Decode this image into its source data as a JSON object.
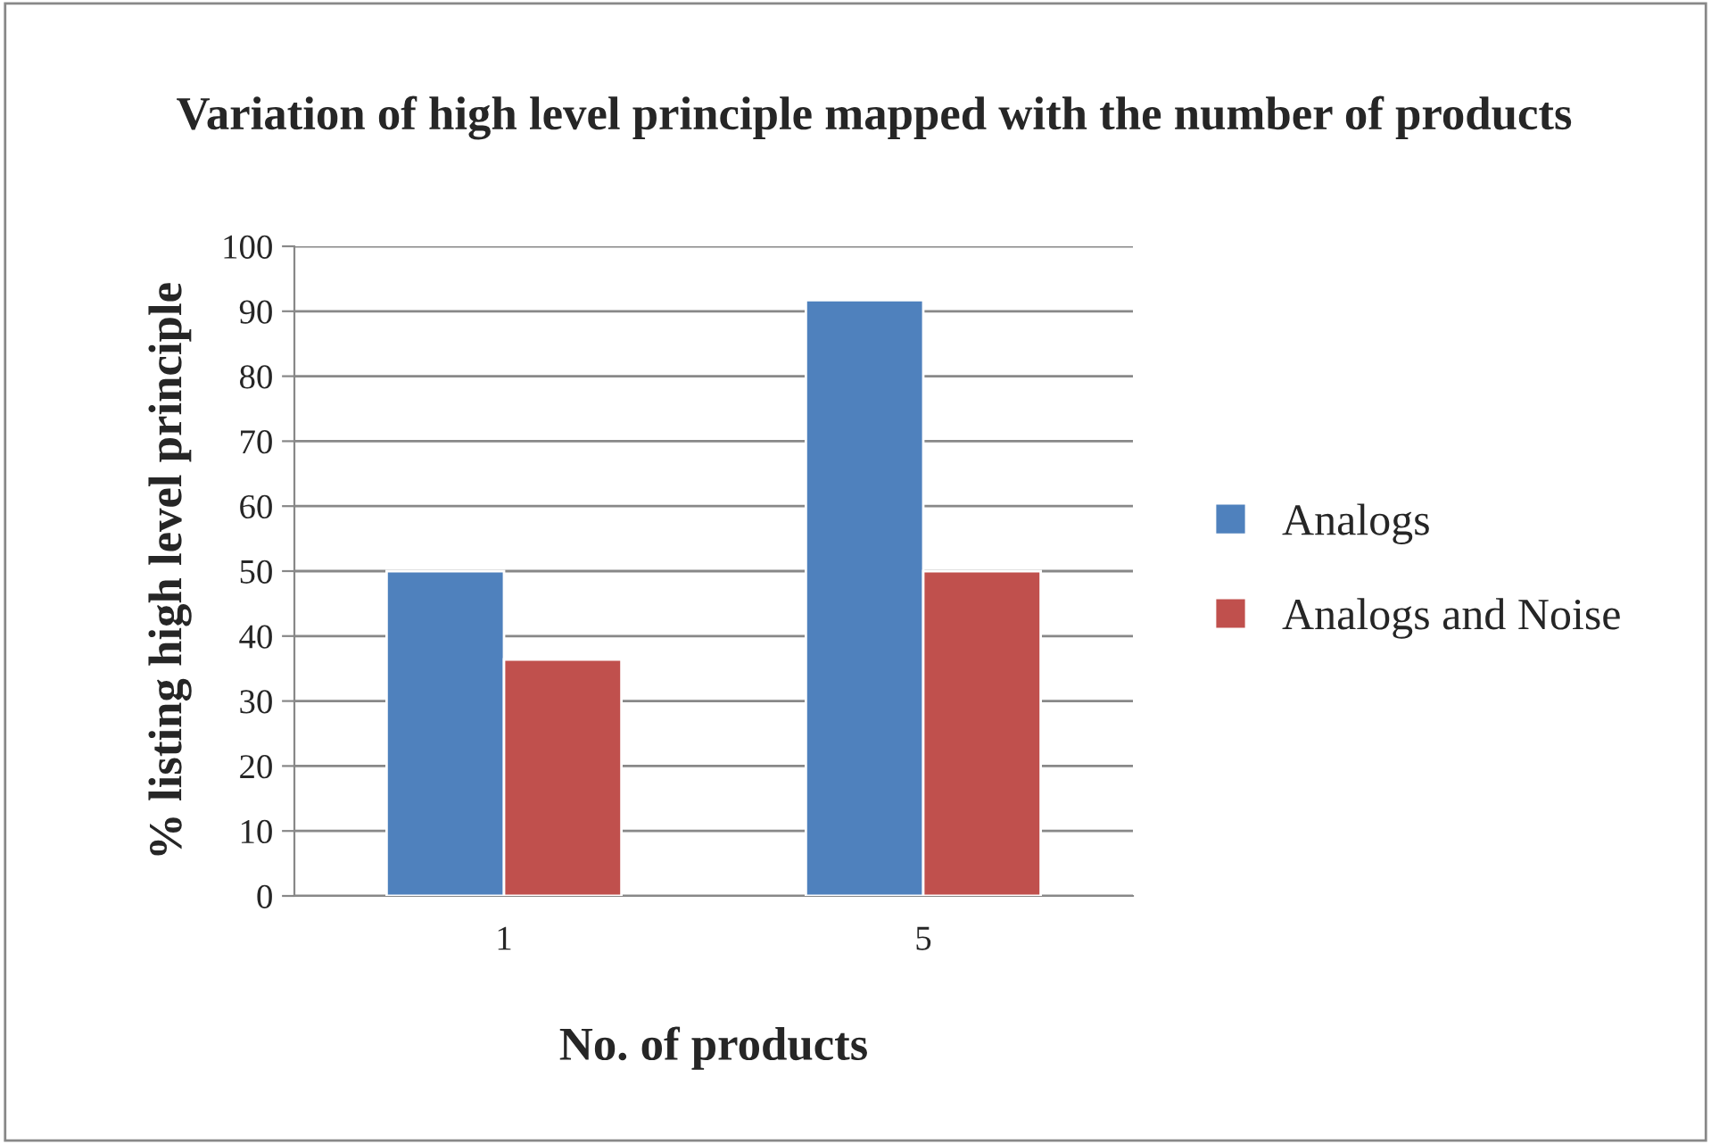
{
  "chart_data": {
    "type": "bar",
    "title": "Variation of high level principle mapped with the number of products",
    "xlabel": "No. of products",
    "ylabel": "% listing high level principle",
    "categories": [
      "1",
      "5"
    ],
    "series": [
      {
        "name": "Analogs",
        "color": "#4f81bd",
        "values": [
          50,
          91.7
        ]
      },
      {
        "name": "Analogs and Noise",
        "color": "#c0504d",
        "values": [
          36.4,
          50
        ]
      }
    ],
    "ylim": [
      0,
      100
    ],
    "yticks": [
      0,
      10,
      20,
      30,
      40,
      50,
      60,
      70,
      80,
      90,
      100
    ],
    "grid": "y",
    "legend": "right"
  }
}
